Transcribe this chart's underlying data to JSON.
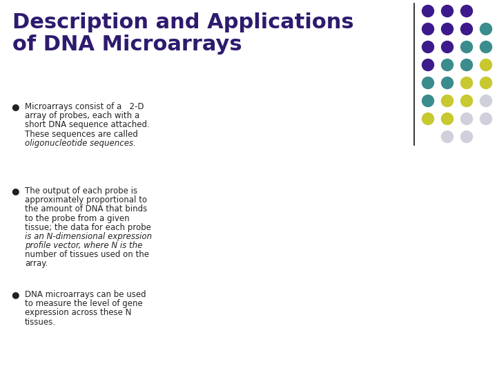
{
  "title_line1": "Description and Applications",
  "title_line2": "of DNA Microarrays",
  "title_color": "#2E1A6E",
  "title_fontsize": 22,
  "background_color": "#FFFFFF",
  "bullet_color": "#222222",
  "bullet_fontsize": 8.5,
  "bullet_char": "●",
  "bullet1_lines": [
    "Microarrays consist of a   2-D",
    "array of probes, each with a",
    "short DNA sequence attached.",
    "These sequences are called",
    "oligonucleotide sequences."
  ],
  "bullet1_italic_words": "oligonucleotide sequences.",
  "bullet2_lines": [
    "The output of each probe is",
    "approximately proportional to",
    "the amount of DNA that binds",
    "to the probe from a given",
    "tissue; the data for each probe",
    "is an N-dimensional expression",
    "profile vector, where N is the",
    "number of tissues used on the",
    "array."
  ],
  "bullet2_italic_words": "expression profile",
  "bullet3_lines": [
    "DNA microarrays can be used",
    "to measure the level of gene",
    "expression across these N",
    "tissues."
  ],
  "divider_color": "#111111",
  "dot_grid_colors": [
    [
      "#3D1A8C",
      "#3D1A8C",
      "#3D1A8C",
      null
    ],
    [
      "#3D1A8C",
      "#3D1A8C",
      "#3D1A8C",
      "#3B8C8C"
    ],
    [
      "#3D1A8C",
      "#3D1A8C",
      "#3B8C8C",
      "#3B8C8C"
    ],
    [
      "#3D1A8C",
      "#3B8C8C",
      "#3B8C8C",
      "#C8C830"
    ],
    [
      "#3B8C8C",
      "#3B8C8C",
      "#C8C830",
      "#C8C830"
    ],
    [
      "#3B8C8C",
      "#C8C830",
      "#C8C830",
      "#D0D0DC"
    ],
    [
      "#C8C830",
      "#C8C830",
      "#D0D0DC",
      "#D0D0DC"
    ],
    [
      null,
      "#D0D0DC",
      "#D0D0DC",
      null
    ]
  ]
}
